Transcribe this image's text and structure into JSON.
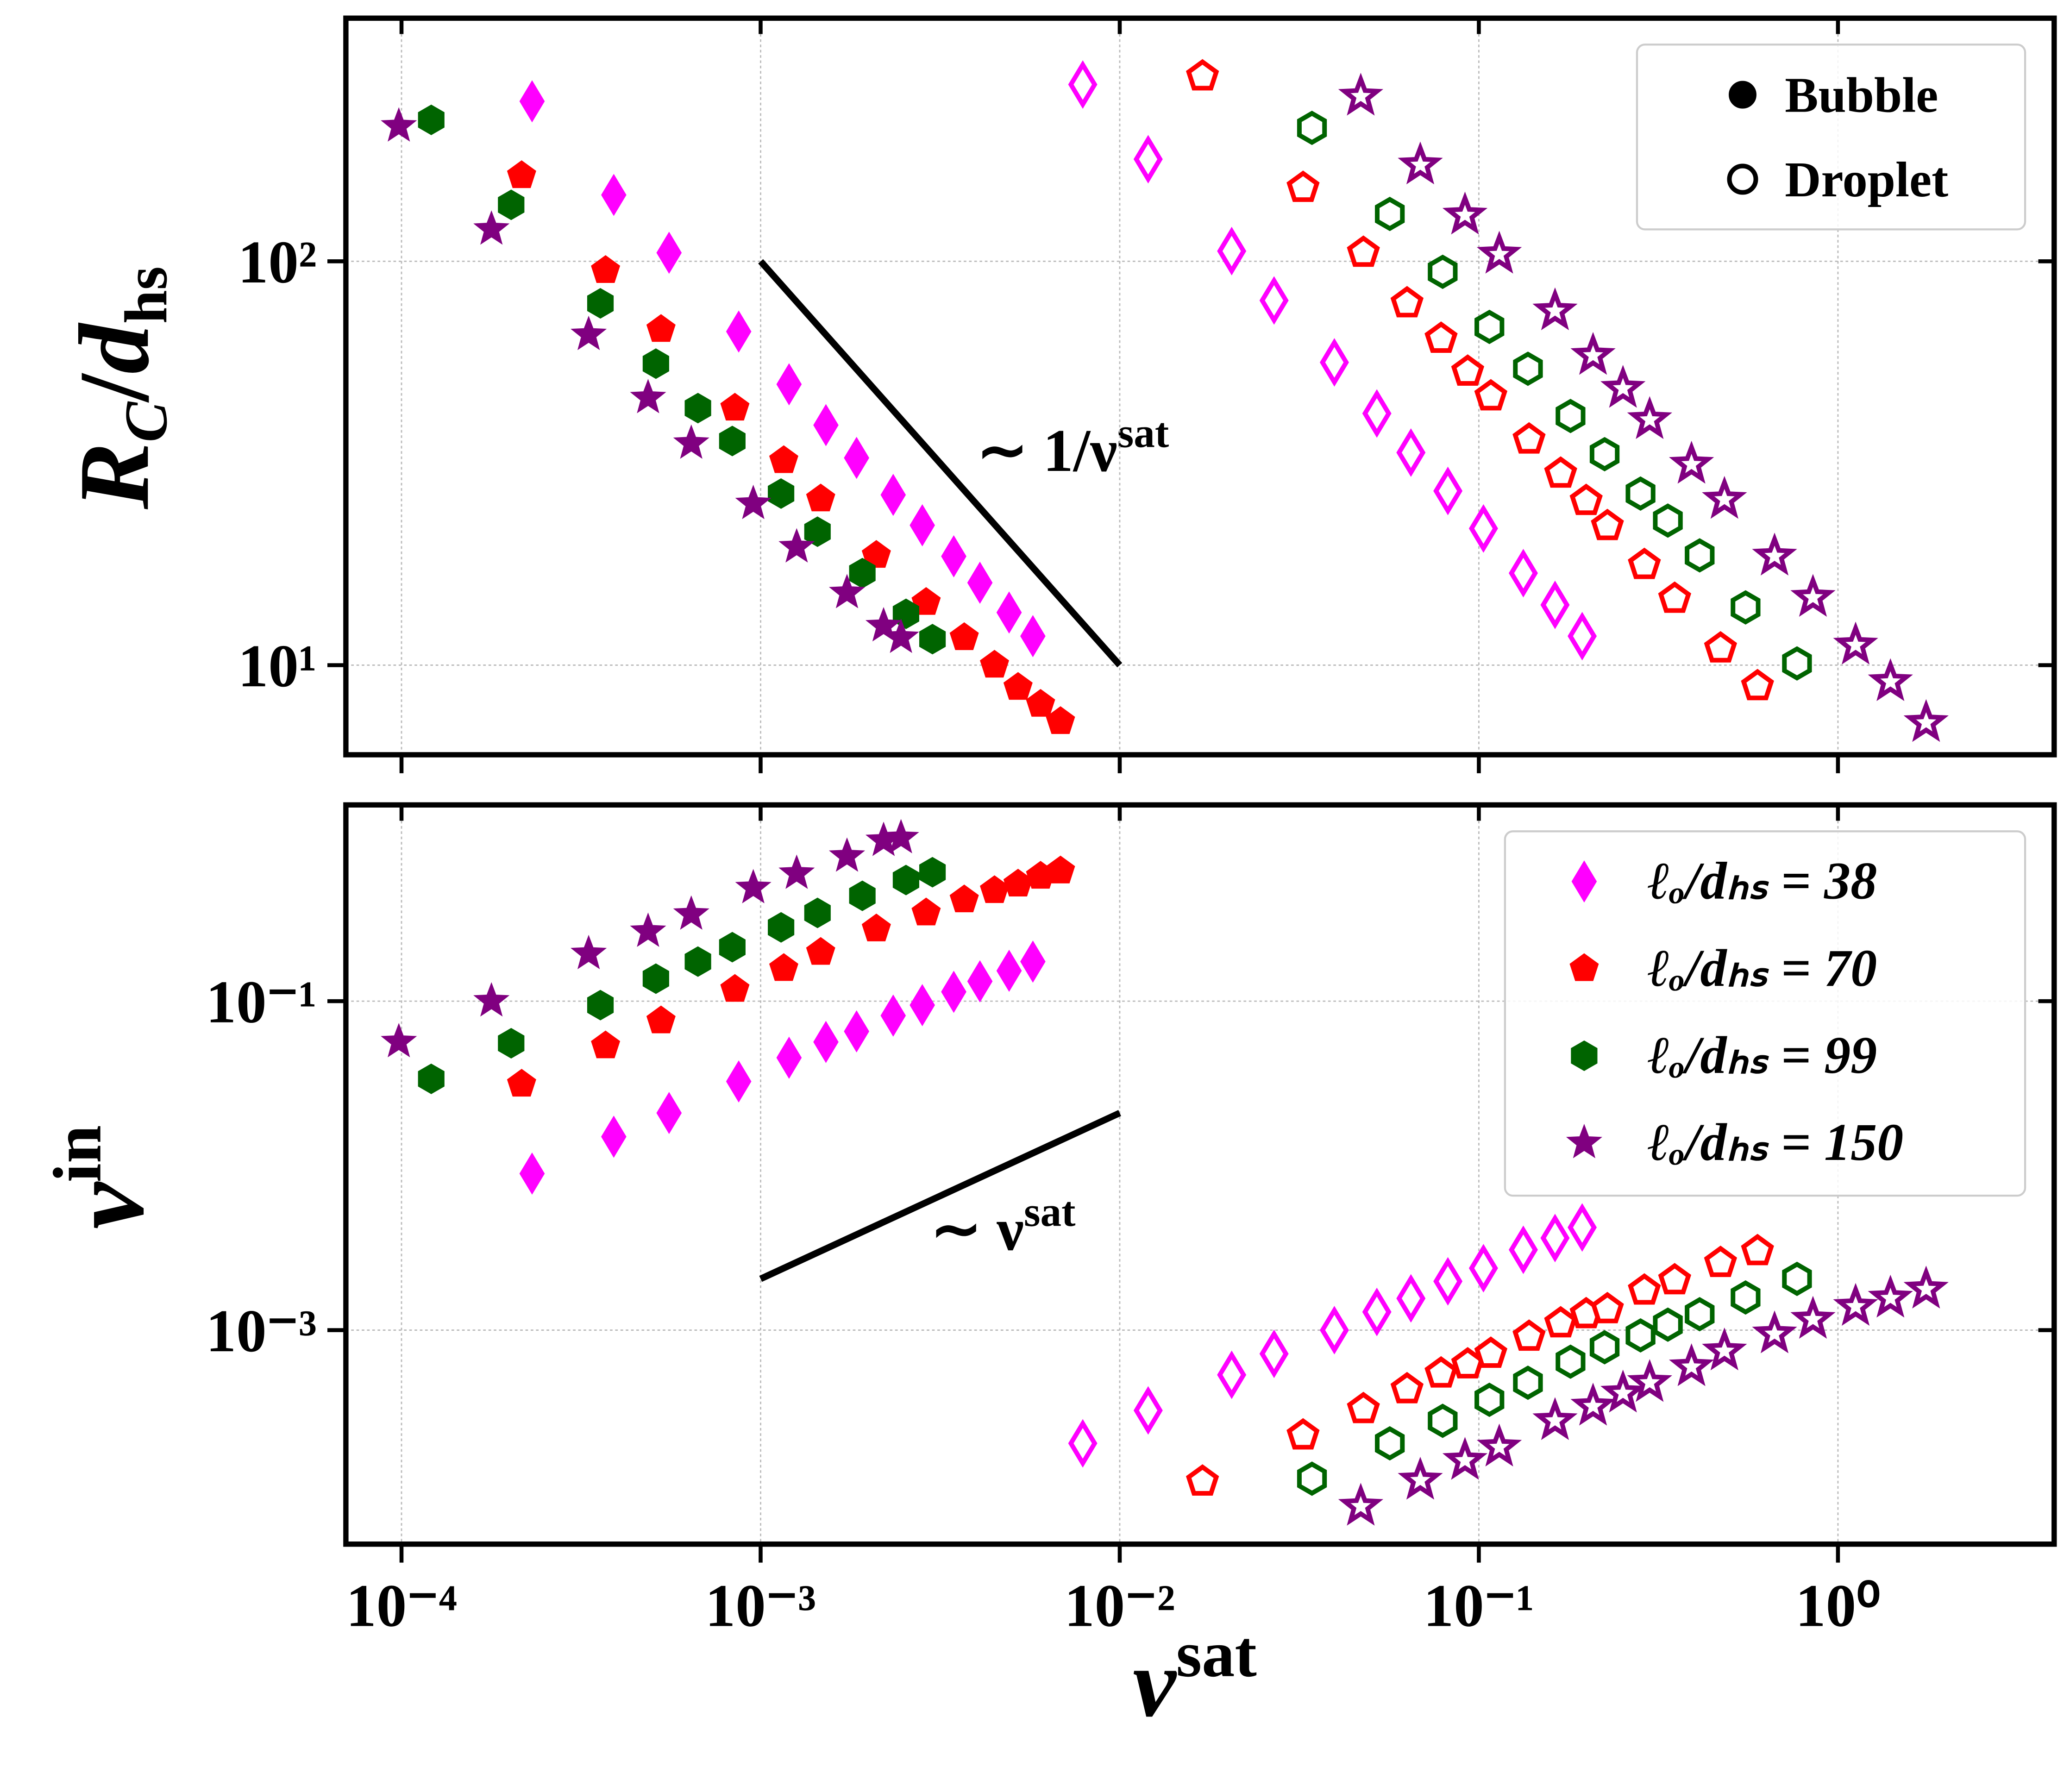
{
  "chart_data": {
    "type": "scatter",
    "log_x": true,
    "log_y": true,
    "grid": true,
    "xlabel": [
      "ν",
      "sat"
    ],
    "xlim": [
      7e-05,
      4
    ],
    "xticks": [
      {
        "value": 0.0001,
        "label": "10⁻⁴"
      },
      {
        "value": 0.001,
        "label": "10⁻³"
      },
      {
        "value": 0.01,
        "label": "10⁻²"
      },
      {
        "value": 0.1,
        "label": "10⁻¹"
      },
      {
        "value": 1,
        "label": "10⁰"
      }
    ],
    "styles": [
      {
        "name": "Bubble",
        "filled": true
      },
      {
        "name": "Droplet",
        "filled": false
      }
    ],
    "series": [
      {
        "name": "ℓₒ/dₕₛ = 38",
        "color": "#ff00ff",
        "marker": "diamond",
        "bubble_x": [
          0.000231,
          0.00039,
          0.000556,
          0.000869,
          0.0012,
          0.00152,
          0.00185,
          0.00234,
          0.00282,
          0.00345,
          0.00408,
          0.00492,
          0.00573
        ],
        "droplet_x": [
          0.00789,
          0.012,
          0.0205,
          0.0269,
          0.0396,
          0.052,
          0.0647,
          0.082,
          0.103,
          0.133,
          0.163,
          0.194
        ]
      },
      {
        "name": "ℓₒ/dₕₛ = 70",
        "color": "#ff0000",
        "marker": "pentagon",
        "bubble_x": [
          0.000216,
          0.00037,
          0.000528,
          0.000848,
          0.00116,
          0.00147,
          0.0021,
          0.00289,
          0.00369,
          0.00448,
          0.00521,
          0.00602,
          0.00684
        ],
        "droplet_x": [
          0.017,
          0.0324,
          0.0477,
          0.0631,
          0.0785,
          0.0931,
          0.108,
          0.138,
          0.169,
          0.199,
          0.228,
          0.289,
          0.351,
          0.471,
          0.597
        ]
      },
      {
        "name": "ℓₒ/dₕₛ = 99",
        "color": "#006400",
        "marker": "hexagon",
        "bubble_x": [
          0.000121,
          0.000202,
          0.000358,
          0.000511,
          0.000669,
          0.000834,
          0.00114,
          0.00144,
          0.00192,
          0.00254,
          0.00301
        ],
        "droplet_x": [
          0.0343,
          0.0565,
          0.0793,
          0.107,
          0.137,
          0.18,
          0.224,
          0.282,
          0.336,
          0.412,
          0.553,
          0.769
        ]
      },
      {
        "name": "ℓₒ/dₕₛ = 150",
        "color": "#800080",
        "marker": "star",
        "bubble_x": [
          9.83e-05,
          0.000178,
          0.000332,
          0.000486,
          0.000641,
          0.000954,
          0.00126,
          0.00174,
          0.0022,
          0.00246
        ],
        "droplet_x": [
          0.0469,
          0.0687,
          0.0915,
          0.114,
          0.163,
          0.208,
          0.252,
          0.299,
          0.391,
          0.483,
          0.666,
          0.852,
          1.12,
          1.4,
          1.76
        ]
      }
    ],
    "panels": [
      {
        "ylabel": [
          "R",
          "C",
          "/",
          "d",
          "hs"
        ],
        "ylim": [
          6,
          400
        ],
        "yticks": [
          {
            "value": 10,
            "label": "10¹"
          },
          {
            "value": 100,
            "label": "10²"
          }
        ],
        "legend": "upper right",
        "legend_shows": "styles",
        "annotation": [
          "∼ 1/ν",
          "sat"
        ],
        "guide": {
          "x": [
            0.001,
            0.01
          ],
          "y": [
            100,
            10
          ]
        },
        "values": [
          {
            "bubble": [
              249,
              146,
              105,
              67,
              49.6,
              39.3,
              32.6,
              26.4,
              22.2,
              18.6,
              16.0,
              13.5,
              11.8
            ],
            "droplet": [
              274,
              179,
              106,
              80.0,
              56.2,
              42.0,
              33.6,
              27.0,
              21.8,
              16.9,
              14.1,
              11.8
            ]
          },
          {
            "bubble": [
              163,
              94.9,
              67.8,
              43.3,
              32.1,
              25.8,
              18.7,
              14.3,
              11.7,
              10.0,
              8.81,
              8.0,
              7.25
            ],
            "droplet": [
              287,
              152,
              105,
              78.7,
              64.3,
              53.3,
              46.3,
              36.2,
              29.8,
              25.5,
              22.1,
              17.7,
              14.6,
              11.0,
              8.87
            ]
          },
          {
            "bubble": [
              224,
              138,
              78.7,
              55.8,
              43.3,
              35.9,
              26.6,
              21.4,
              16.9,
              13.4,
              11.6
            ],
            "droplet": [
              214,
              131,
              94.2,
              68.8,
              54.2,
              41.4,
              33.3,
              26.6,
              22.8,
              18.7,
              13.9,
              10.1
            ]
          },
          {
            "bubble": [
              216,
              120,
              65.8,
              45.9,
              35.4,
              25.1,
              19.6,
              15.1,
              12.5,
              11.7
            ],
            "droplet": [
              256,
              173,
              130,
              104,
              75.3,
              58.4,
              48.4,
              40.5,
              31.4,
              25.7,
              18.6,
              14.7,
              11.2,
              9.09,
              7.2
            ]
          }
        ]
      },
      {
        "ylabel": [
          "ν",
          "in"
        ],
        "ylim": [
          5e-05,
          1.56
        ],
        "yticks": [
          {
            "value": 0.001,
            "label": "10⁻³"
          },
          {
            "value": 0.1,
            "label": "10⁻¹"
          }
        ],
        "legend": "upper right",
        "legend_shows": "series",
        "annotation": [
          "∼ ν",
          "sat"
        ],
        "guide": {
          "x": [
            0.001,
            0.01
          ],
          "y": [
            0.00205,
            0.0209
          ]
        },
        "values": [
          {
            "bubble": [
              0.00895,
              0.015,
              0.0209,
              0.0325,
              0.0453,
              0.0565,
              0.0655,
              0.0817,
              0.0946,
              0.114,
              0.132,
              0.153,
              0.174
            ],
            "droplet": [
              0.000205,
              0.000325,
              0.000535,
              0.000718,
              0.001,
              0.00129,
              0.00156,
              0.00198,
              0.00238,
              0.00308,
              0.00363,
              0.00421
            ]
          },
          {
            "bubble": [
              0.0313,
              0.0535,
              0.0759,
              0.118,
              0.158,
              0.198,
              0.275,
              0.344,
              0.413,
              0.47,
              0.515,
              0.575,
              0.619
            ],
            "droplet": [
              0.00012,
              0.000229,
              0.000331,
              0.000437,
              0.000545,
              0.000619,
              0.000718,
              0.000912,
              0.0011,
              0.00125,
              0.00134,
              0.00174,
              0.00201,
              0.00256,
              0.00302
            ]
          },
          {
            "bubble": [
              0.0337,
              0.0555,
              0.0946,
              0.137,
              0.174,
              0.213,
              0.281,
              0.344,
              0.437,
              0.545,
              0.608
            ],
            "droplet": [
              0.000125,
              0.000205,
              0.000281,
              0.000377,
              0.000479,
              0.000643,
              0.000787,
              0.000929,
              0.00108,
              0.00125,
              0.00158,
              0.00205
            ]
          },
          {
            "bubble": [
              0.0565,
              0.1,
              0.194,
              0.265,
              0.337,
              0.488,
              0.597,
              0.759,
              0.946,
              0.982
            ],
            "droplet": [
              8.47e-05,
              0.000122,
              0.000161,
              0.000194,
              0.000281,
              0.000344,
              0.000413,
              0.000479,
              0.000597,
              0.000745,
              0.000946,
              0.00116,
              0.00139,
              0.00156,
              0.00177
            ]
          }
        ]
      }
    ]
  }
}
